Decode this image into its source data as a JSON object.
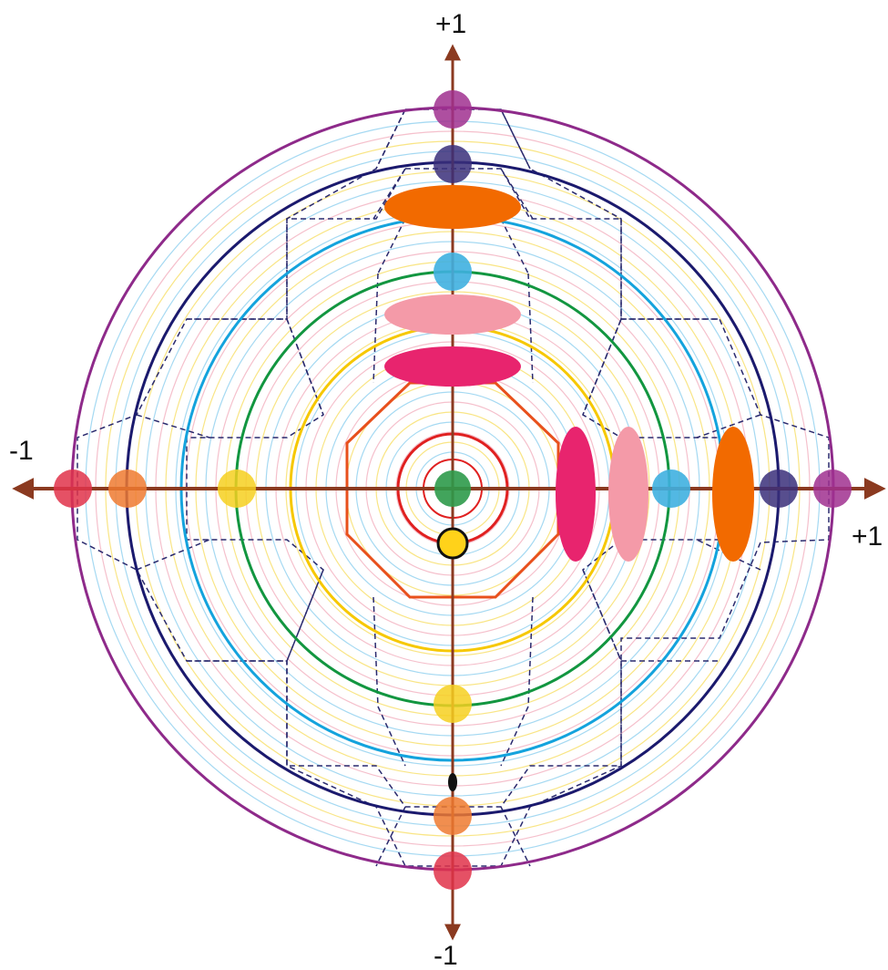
{
  "axis_labels": {
    "x_negative": "-1",
    "x_positive": "+1",
    "y_positive": "+1",
    "y_negative": "-1"
  },
  "colors": {
    "axis": "#8b3a20",
    "outer_circle": "#8e2a8a",
    "navy_circle": "#1a1a6e",
    "cyan_circle": "#14a3dd",
    "green_circle": "#129640",
    "yellow_circle": "#f6c800",
    "octagon": "#e8501c",
    "red_circle": "#e02020",
    "dashed_polygon": "#2a2a6e",
    "faint_rings": [
      "#8fd0ef",
      "#f7de66",
      "#f2b0bf"
    ]
  },
  "markers": [
    {
      "name": "center-dot",
      "color": "#2e9a4a"
    },
    {
      "name": "gold-dot",
      "color": "#ffd21a"
    },
    {
      "name": "purple-dot",
      "color": "#a0308f"
    },
    {
      "name": "navy-dot",
      "color": "#3a2f7a"
    },
    {
      "name": "cyan-dot",
      "color": "#3fb0e0"
    },
    {
      "name": "orange-dot",
      "color": "#ef7a30"
    },
    {
      "name": "red-dot",
      "color": "#e0324a"
    },
    {
      "name": "yellow-dot",
      "color": "#f6d020"
    },
    {
      "name": "orange-ellipse",
      "color": "#f26a00"
    },
    {
      "name": "pink-ellipse",
      "color": "#f49aa8"
    },
    {
      "name": "magenta-ellipse",
      "color": "#e8246e"
    }
  ]
}
